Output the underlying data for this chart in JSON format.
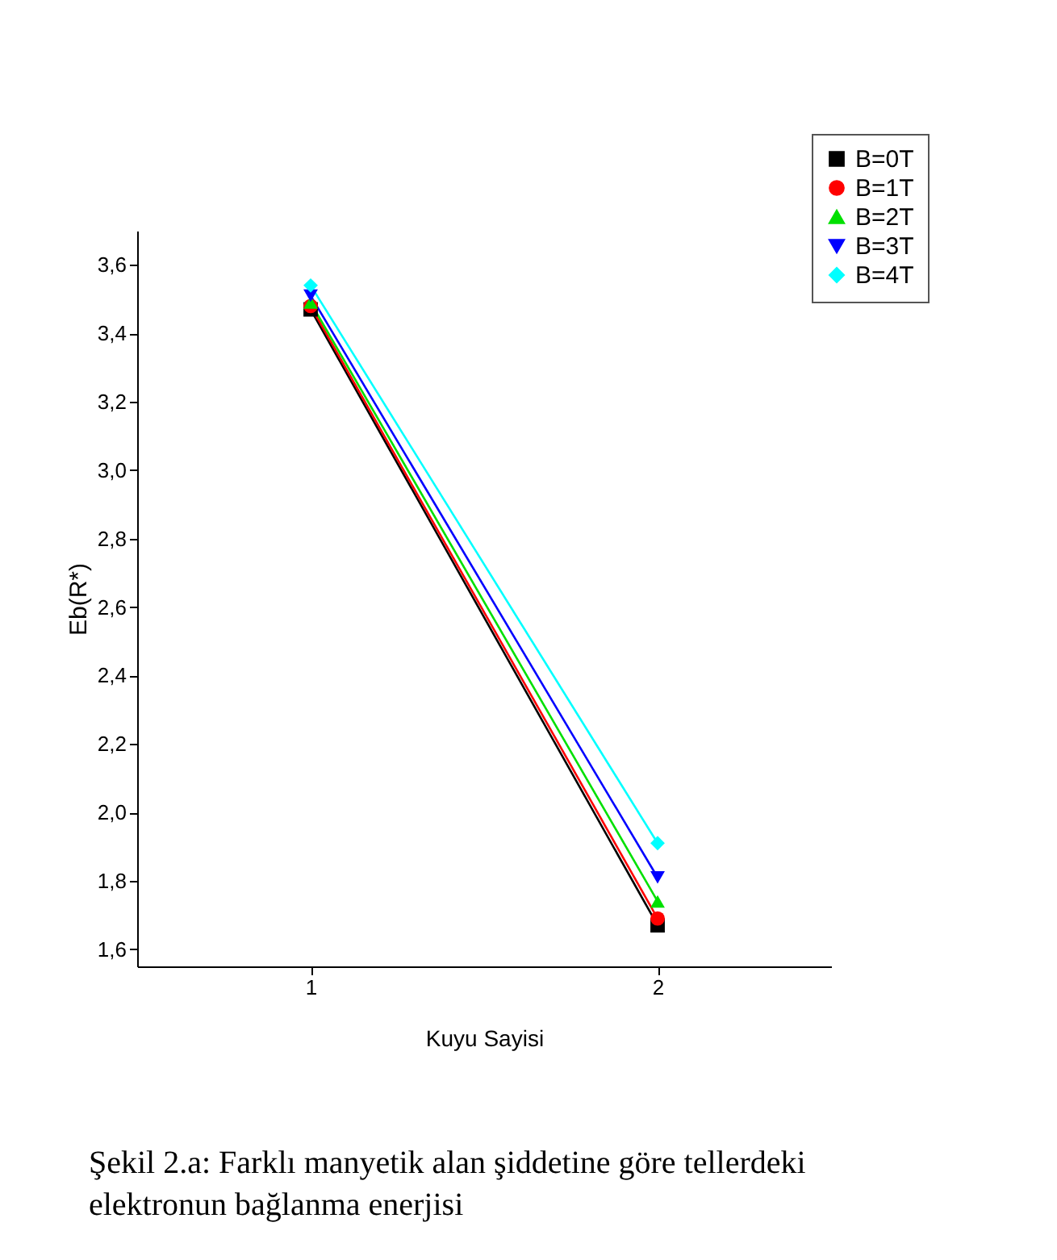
{
  "chart_data": {
    "type": "line",
    "xlabel": "Kuyu Sayisi",
    "ylabel": "Eb(R*)",
    "x": [
      1,
      2
    ],
    "series": [
      {
        "name": "B=0T",
        "color": "#000000",
        "marker": "square",
        "values": [
          3.47,
          1.67
        ]
      },
      {
        "name": "B=1T",
        "color": "#ff0000",
        "marker": "circle",
        "values": [
          3.48,
          1.69
        ]
      },
      {
        "name": "B=2T",
        "color": "#00e000",
        "marker": "triangle",
        "values": [
          3.49,
          1.74
        ]
      },
      {
        "name": "B=3T",
        "color": "#0000ff",
        "marker": "triangle-down",
        "values": [
          3.51,
          1.81
        ]
      },
      {
        "name": "B=4T",
        "color": "#00ffff",
        "marker": "diamond",
        "values": [
          3.54,
          1.91
        ]
      }
    ],
    "xlim": [
      0.5,
      2.5
    ],
    "xticks": [
      1,
      2
    ],
    "ylim": [
      1.55,
      3.7
    ],
    "yticks": [
      {
        "value": 1.6,
        "label": "1,6"
      },
      {
        "value": 1.8,
        "label": "1,8"
      },
      {
        "value": 2.0,
        "label": "2,0"
      },
      {
        "value": 2.2,
        "label": "2,2"
      },
      {
        "value": 2.4,
        "label": "2,4"
      },
      {
        "value": 2.6,
        "label": "2,6"
      },
      {
        "value": 2.8,
        "label": "2,8"
      },
      {
        "value": 3.0,
        "label": "3,0"
      },
      {
        "value": 3.2,
        "label": "3,2"
      },
      {
        "value": 3.4,
        "label": "3,4"
      },
      {
        "value": 3.6,
        "label": "3,6"
      }
    ],
    "grid": false,
    "legend": "top right",
    "line_style": "solid",
    "annotations": [
      "Şekil 2.a: Farklı manyetik alan şiddetine göre tellerdeki elektronun bağlanma enerjisi"
    ]
  }
}
